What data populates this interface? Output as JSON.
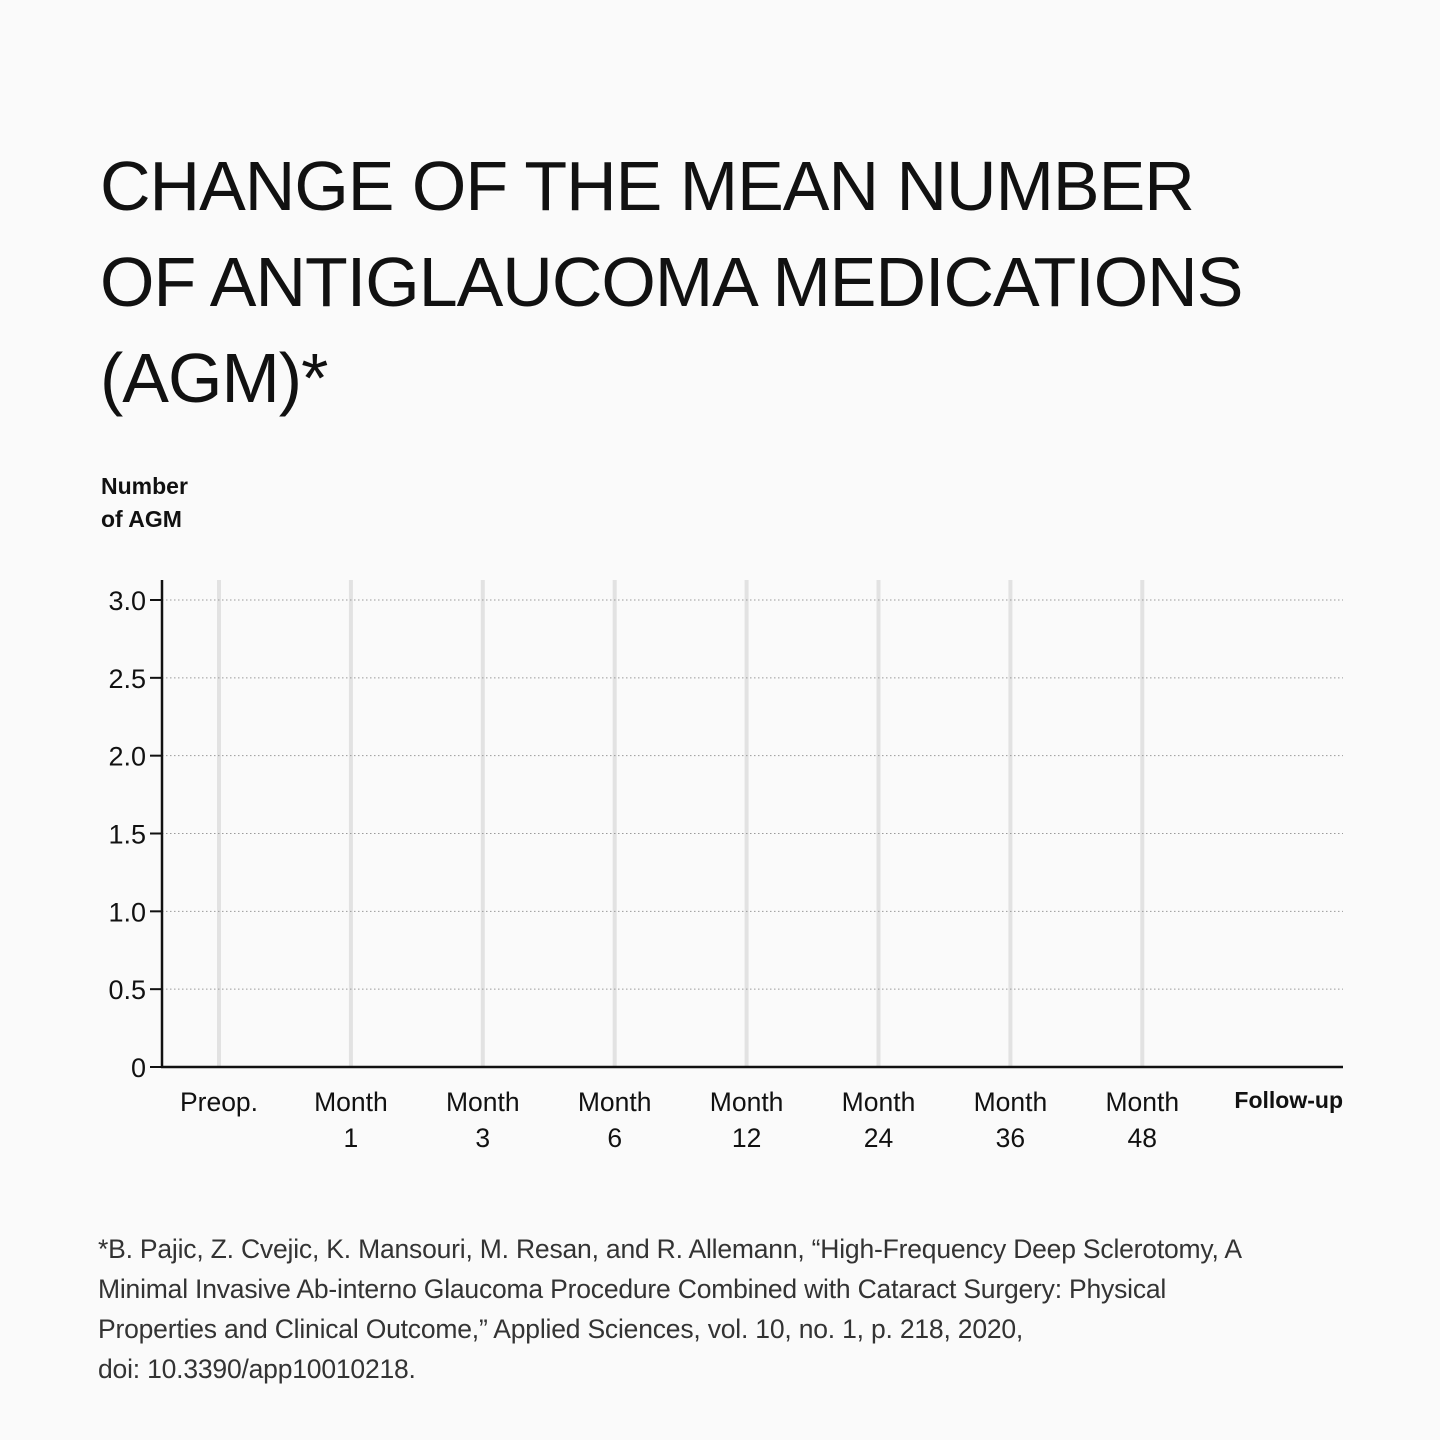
{
  "chart_data": {
    "type": "line",
    "title_lines": [
      "CHANGE OF THE MEAN NUMBER",
      "OF ANTIGLAUCOMA MEDICATIONS",
      "(AGM)*"
    ],
    "ylabel_lines": [
      "Number",
      "of AGM"
    ],
    "xlabel": "Follow-up",
    "categories": [
      [
        "Preop."
      ],
      [
        "Month",
        "1"
      ],
      [
        "Month",
        "3"
      ],
      [
        "Month",
        "6"
      ],
      [
        "Month",
        "12"
      ],
      [
        "Month",
        "24"
      ],
      [
        "Month",
        "36"
      ],
      [
        "Month",
        "48"
      ]
    ],
    "ylim": [
      0,
      3.0
    ],
    "yticks": [
      0,
      0.5,
      1.0,
      1.5,
      2.0,
      2.5,
      3.0
    ],
    "ytick_labels": [
      "0",
      "0.5",
      "1.0",
      "1.5",
      "2.0",
      "2.5",
      "3.0"
    ],
    "series": [],
    "grid": "horizontal dotted",
    "colors": {
      "axis": "#111111",
      "gridline": "#9a9a9a",
      "category_line": "#e2e2e2",
      "text": "#111111"
    }
  },
  "footnote_lines": [
    "*B. Pajic, Z. Cvejic, K. Mansouri, M. Resan, and R. Allemann, “High-Frequency Deep Sclerotomy, A",
    "Minimal Invasive Ab-interno Glaucoma Procedure Combined with Cataract Surgery: Physical",
    "Properties and Clinical Outcome,” Applied Sciences, vol. 10, no. 1, p. 218, 2020,",
    "doi: 10.3390/app10010218."
  ]
}
